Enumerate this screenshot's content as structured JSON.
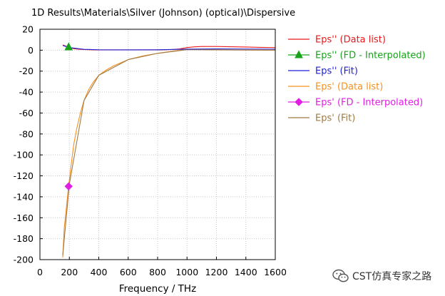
{
  "chart_data": {
    "type": "line",
    "title": "1D Results\\Materials\\Silver (Johnson) (optical)\\Dispersive",
    "xlabel": "Frequency / THz",
    "ylabel": "",
    "xlim": [
      0,
      1600
    ],
    "ylim": [
      -200,
      20
    ],
    "xticks": [
      "0",
      "200",
      "400",
      "600",
      "800",
      "1000",
      "1200",
      "1400",
      "1600"
    ],
    "yticks": [
      "20",
      "0",
      "-20",
      "-40",
      "-60",
      "-80",
      "-100",
      "-120",
      "-140",
      "-160",
      "-180",
      "-200"
    ],
    "grid": true,
    "legend_position": "right",
    "series": [
      {
        "name": "Eps'' (Data list)",
        "color": "#e8191c",
        "marker": "none",
        "x": [
          155,
          175,
          200,
          230,
          260,
          300,
          350,
          400,
          500,
          600,
          700,
          800,
          900,
          950,
          1000,
          1050,
          1100,
          1200,
          1300,
          1400,
          1500,
          1600
        ],
        "y": [
          5,
          4,
          2.5,
          1.5,
          1,
          0.6,
          0.4,
          0.3,
          0.3,
          0.3,
          0.3,
          0.3,
          0.6,
          1.2,
          2.5,
          3.2,
          3.5,
          3.5,
          3.3,
          3.0,
          2.7,
          2.5
        ]
      },
      {
        "name": "Eps'' (FD - Interpolated)",
        "color": "#16a31a",
        "marker": "triangle",
        "x": [
          195
        ],
        "y": [
          3
        ]
      },
      {
        "name": "Eps'' (Fit)",
        "color": "#1f1fd6",
        "marker": "none",
        "x": [
          155,
          200,
          300,
          400,
          600,
          800,
          1000,
          1200,
          1400,
          1600
        ],
        "y": [
          4.5,
          2.5,
          0.8,
          0.4,
          0.3,
          0.4,
          1.0,
          1.2,
          1.1,
          1.0
        ]
      },
      {
        "name": "Eps' (Data list)",
        "color": "#f7901e",
        "marker": "none",
        "x": [
          155,
          165,
          180,
          195,
          210,
          230,
          250,
          275,
          300,
          330,
          360,
          400,
          450,
          500,
          600,
          700,
          800,
          900,
          950,
          1000,
          1100,
          1200,
          1400,
          1600
        ],
        "y": [
          -198,
          -170,
          -150,
          -130,
          -112,
          -90,
          -75,
          -60,
          -48,
          -38,
          -31,
          -24,
          -19,
          -15,
          -9,
          -5.5,
          -3,
          -1,
          0,
          1,
          0.8,
          0.5,
          0.2,
          0
        ]
      },
      {
        "name": "Eps' (FD - Interpolated)",
        "color": "#e21ee2",
        "marker": "diamond",
        "x": [
          195
        ],
        "y": [
          -130
        ]
      },
      {
        "name": "Eps' (Fit)",
        "color": "#a07a45",
        "marker": "none",
        "x": [
          155,
          200,
          300,
          400,
          600,
          800,
          1000,
          1200,
          1400,
          1600
        ],
        "y": [
          -196,
          -128,
          -48,
          -24,
          -9,
          -3,
          0.5,
          0.3,
          0.1,
          0
        ]
      }
    ]
  },
  "watermark": {
    "icon": "wechat-icon",
    "text": "CST仿真专家之路"
  }
}
